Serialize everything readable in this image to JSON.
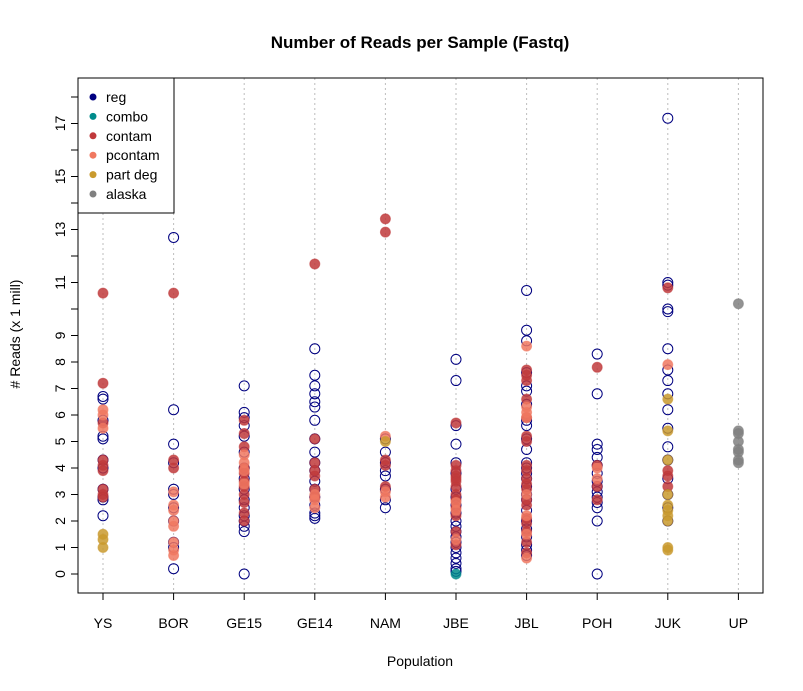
{
  "chart_data": {
    "type": "scatter",
    "title": "Number of Reads per Sample (Fastq)",
    "xlabel": "Population",
    "ylabel": "# Reads (x 1 mill)",
    "categories": [
      "YS",
      "BOR",
      "GE15",
      "GE14",
      "NAM",
      "JBE",
      "JBL",
      "POH",
      "JUK",
      "UP"
    ],
    "yticks": [
      0,
      1,
      2,
      3,
      4,
      5,
      6,
      7,
      8,
      9,
      11,
      13,
      15,
      17
    ],
    "ylim": [
      -0.8,
      18.5
    ],
    "grid": "vertical-dotted",
    "legend_position": "top-left",
    "series": [
      {
        "name": "reg",
        "color": "#000080",
        "marker": "open-circle",
        "points": [
          [
            0,
            6.7
          ],
          [
            0,
            6.6
          ],
          [
            0,
            5.8
          ],
          [
            0,
            5.2
          ],
          [
            0,
            5.1
          ],
          [
            0,
            4.3
          ],
          [
            0,
            4.0
          ],
          [
            0,
            3.2
          ],
          [
            0,
            2.9
          ],
          [
            0,
            2.8
          ],
          [
            0,
            2.2
          ],
          [
            1,
            12.7
          ],
          [
            1,
            6.2
          ],
          [
            1,
            4.9
          ],
          [
            1,
            4.2
          ],
          [
            1,
            3.2
          ],
          [
            1,
            3.0
          ],
          [
            1,
            2.5
          ],
          [
            1,
            2.0
          ],
          [
            1,
            1.2
          ],
          [
            1,
            1.0
          ],
          [
            1,
            0.2
          ],
          [
            2,
            7.1
          ],
          [
            2,
            6.1
          ],
          [
            2,
            5.9
          ],
          [
            2,
            5.6
          ],
          [
            2,
            5.2
          ],
          [
            2,
            4.6
          ],
          [
            2,
            4.0
          ],
          [
            2,
            3.6
          ],
          [
            2,
            3.2
          ],
          [
            2,
            2.8
          ],
          [
            2,
            2.5
          ],
          [
            2,
            2.2
          ],
          [
            2,
            2.0
          ],
          [
            2,
            1.8
          ],
          [
            2,
            1.6
          ],
          [
            2,
            0.0
          ],
          [
            3,
            8.5
          ],
          [
            3,
            7.5
          ],
          [
            3,
            7.1
          ],
          [
            3,
            6.8
          ],
          [
            3,
            6.5
          ],
          [
            3,
            6.3
          ],
          [
            3,
            5.8
          ],
          [
            3,
            5.1
          ],
          [
            3,
            4.6
          ],
          [
            3,
            4.2
          ],
          [
            3,
            3.9
          ],
          [
            3,
            3.5
          ],
          [
            3,
            3.2
          ],
          [
            3,
            2.9
          ],
          [
            3,
            2.6
          ],
          [
            3,
            2.3
          ],
          [
            3,
            2.2
          ],
          [
            3,
            2.1
          ],
          [
            4,
            5.1
          ],
          [
            4,
            4.6
          ],
          [
            4,
            4.2
          ],
          [
            4,
            3.9
          ],
          [
            4,
            3.7
          ],
          [
            4,
            3.2
          ],
          [
            4,
            2.8
          ],
          [
            4,
            2.5
          ],
          [
            5,
            8.1
          ],
          [
            5,
            7.3
          ],
          [
            5,
            5.6
          ],
          [
            5,
            4.9
          ],
          [
            5,
            4.2
          ],
          [
            5,
            3.8
          ],
          [
            5,
            3.2
          ],
          [
            5,
            2.9
          ],
          [
            5,
            2.6
          ],
          [
            5,
            2.3
          ],
          [
            5,
            2.0
          ],
          [
            5,
            1.8
          ],
          [
            5,
            1.6
          ],
          [
            5,
            1.4
          ],
          [
            5,
            1.2
          ],
          [
            5,
            1.0
          ],
          [
            5,
            0.8
          ],
          [
            5,
            0.6
          ],
          [
            5,
            0.4
          ],
          [
            5,
            0.2
          ],
          [
            5,
            0.1
          ],
          [
            6,
            10.7
          ],
          [
            6,
            9.2
          ],
          [
            6,
            8.8
          ],
          [
            6,
            7.6
          ],
          [
            6,
            7.1
          ],
          [
            6,
            6.9
          ],
          [
            6,
            6.4
          ],
          [
            6,
            5.8
          ],
          [
            6,
            5.6
          ],
          [
            6,
            5.1
          ],
          [
            6,
            4.7
          ],
          [
            6,
            4.2
          ],
          [
            6,
            4.0
          ],
          [
            6,
            3.8
          ],
          [
            6,
            3.6
          ],
          [
            6,
            3.3
          ],
          [
            6,
            3.0
          ],
          [
            6,
            2.8
          ],
          [
            6,
            2.4
          ],
          [
            6,
            2.0
          ],
          [
            6,
            1.7
          ],
          [
            6,
            1.4
          ],
          [
            6,
            1.1
          ],
          [
            6,
            0.9
          ],
          [
            6,
            0.7
          ],
          [
            7,
            8.3
          ],
          [
            7,
            6.8
          ],
          [
            7,
            4.9
          ],
          [
            7,
            4.7
          ],
          [
            7,
            4.4
          ],
          [
            7,
            4.1
          ],
          [
            7,
            3.8
          ],
          [
            7,
            3.5
          ],
          [
            7,
            3.3
          ],
          [
            7,
            3.1
          ],
          [
            7,
            2.9
          ],
          [
            7,
            2.7
          ],
          [
            7,
            2.5
          ],
          [
            7,
            2.0
          ],
          [
            7,
            0.0
          ],
          [
            8,
            17.2
          ],
          [
            8,
            11.0
          ],
          [
            8,
            10.9
          ],
          [
            8,
            10.0
          ],
          [
            8,
            9.9
          ],
          [
            8,
            8.5
          ],
          [
            8,
            7.7
          ],
          [
            8,
            7.3
          ],
          [
            8,
            6.8
          ],
          [
            8,
            6.2
          ],
          [
            8,
            5.5
          ],
          [
            8,
            4.8
          ],
          [
            8,
            4.3
          ],
          [
            8,
            3.6
          ],
          [
            8,
            3.0
          ],
          [
            8,
            2.5
          ],
          [
            8,
            2.0
          ]
        ]
      },
      {
        "name": "combo",
        "color": "#008B8B",
        "marker": "filled-circle",
        "points": [
          [
            5,
            0.0
          ]
        ]
      },
      {
        "name": "contam",
        "color": "#C0393B",
        "marker": "filled-circle",
        "points": [
          [
            0,
            10.6
          ],
          [
            0,
            7.2
          ],
          [
            0,
            5.7
          ],
          [
            0,
            4.3
          ],
          [
            0,
            4.1
          ],
          [
            0,
            3.9
          ],
          [
            0,
            3.2
          ],
          [
            0,
            3.0
          ],
          [
            0,
            2.9
          ],
          [
            1,
            10.6
          ],
          [
            1,
            4.3
          ],
          [
            1,
            4.0
          ],
          [
            2,
            5.8
          ],
          [
            2,
            5.3
          ],
          [
            2,
            4.8
          ],
          [
            2,
            4.0
          ],
          [
            2,
            3.8
          ],
          [
            2,
            3.5
          ],
          [
            2,
            3.3
          ],
          [
            2,
            3.0
          ],
          [
            2,
            2.7
          ],
          [
            2,
            2.3
          ],
          [
            2,
            2.0
          ],
          [
            3,
            11.7
          ],
          [
            3,
            5.1
          ],
          [
            3,
            4.2
          ],
          [
            3,
            3.9
          ],
          [
            3,
            3.7
          ],
          [
            3,
            3.2
          ],
          [
            3,
            2.9
          ],
          [
            4,
            13.4
          ],
          [
            4,
            12.9
          ],
          [
            4,
            4.3
          ],
          [
            4,
            4.1
          ],
          [
            4,
            3.3
          ],
          [
            5,
            5.7
          ],
          [
            5,
            4.1
          ],
          [
            5,
            3.9
          ],
          [
            5,
            3.7
          ],
          [
            5,
            3.6
          ],
          [
            5,
            3.5
          ],
          [
            5,
            3.3
          ],
          [
            5,
            3.0
          ],
          [
            5,
            2.8
          ],
          [
            5,
            2.5
          ],
          [
            5,
            2.2
          ],
          [
            5,
            1.6
          ],
          [
            5,
            1.1
          ],
          [
            6,
            7.7
          ],
          [
            6,
            7.5
          ],
          [
            6,
            7.3
          ],
          [
            6,
            6.6
          ],
          [
            6,
            5.9
          ],
          [
            6,
            5.2
          ],
          [
            6,
            5.0
          ],
          [
            6,
            4.1
          ],
          [
            6,
            3.9
          ],
          [
            6,
            3.6
          ],
          [
            6,
            3.4
          ],
          [
            6,
            3.2
          ],
          [
            6,
            2.8
          ],
          [
            6,
            2.6
          ],
          [
            6,
            2.1
          ],
          [
            6,
            1.9
          ],
          [
            6,
            1.6
          ],
          [
            6,
            1.2
          ],
          [
            6,
            0.8
          ],
          [
            7,
            7.8
          ],
          [
            7,
            4.1
          ],
          [
            7,
            3.3
          ],
          [
            7,
            2.8
          ],
          [
            8,
            10.8
          ],
          [
            8,
            3.9
          ],
          [
            8,
            3.7
          ],
          [
            8,
            3.3
          ]
        ]
      },
      {
        "name": "pcontam",
        "color": "#F07860",
        "marker": "filled-circle",
        "points": [
          [
            0,
            6.2
          ],
          [
            0,
            6.0
          ],
          [
            0,
            5.5
          ],
          [
            1,
            3.1
          ],
          [
            1,
            2.6
          ],
          [
            1,
            2.4
          ],
          [
            1,
            2.0
          ],
          [
            1,
            1.8
          ],
          [
            1,
            1.2
          ],
          [
            1,
            0.9
          ],
          [
            1,
            0.7
          ],
          [
            2,
            4.5
          ],
          [
            2,
            4.2
          ],
          [
            2,
            3.9
          ],
          [
            2,
            3.4
          ],
          [
            3,
            3.0
          ],
          [
            3,
            2.8
          ],
          [
            3,
            2.5
          ],
          [
            4,
            5.2
          ],
          [
            4,
            3.1
          ],
          [
            4,
            2.9
          ],
          [
            5,
            2.7
          ],
          [
            5,
            2.4
          ],
          [
            5,
            1.3
          ],
          [
            6,
            8.6
          ],
          [
            6,
            6.3
          ],
          [
            6,
            6.1
          ],
          [
            6,
            5.9
          ],
          [
            6,
            3.0
          ],
          [
            6,
            2.2
          ],
          [
            6,
            1.5
          ],
          [
            6,
            0.6
          ],
          [
            7,
            4.0
          ],
          [
            7,
            3.6
          ],
          [
            8,
            7.9
          ]
        ]
      },
      {
        "name": "part deg",
        "color": "#C99A2E",
        "marker": "filled-circle",
        "points": [
          [
            0,
            1.5
          ],
          [
            0,
            1.3
          ],
          [
            0,
            1.0
          ],
          [
            4,
            5.0
          ],
          [
            8,
            6.6
          ],
          [
            8,
            5.4
          ],
          [
            8,
            4.3
          ],
          [
            8,
            3.0
          ],
          [
            8,
            2.6
          ],
          [
            8,
            2.4
          ],
          [
            8,
            2.2
          ],
          [
            8,
            2.0
          ],
          [
            8,
            1.0
          ],
          [
            8,
            0.9
          ]
        ]
      },
      {
        "name": "alaska",
        "color": "#808080",
        "marker": "filled-circle",
        "points": [
          [
            9,
            10.2
          ],
          [
            9,
            5.4
          ],
          [
            9,
            5.3
          ],
          [
            9,
            5.0
          ],
          [
            9,
            4.7
          ],
          [
            9,
            4.6
          ],
          [
            9,
            4.3
          ],
          [
            9,
            4.2
          ]
        ]
      }
    ]
  }
}
